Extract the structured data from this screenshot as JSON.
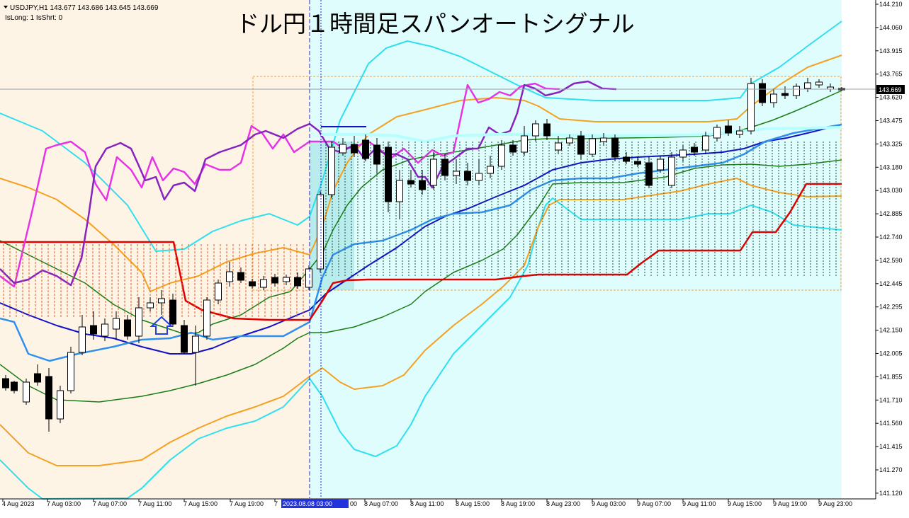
{
  "header": {
    "symbol_line": "USDJPY,H1  143.677 143.686 143.645 143.669",
    "status_line": "IsLong: 1 IsShrt: 0",
    "title": "ドル円１時間足スパンオートシグナル"
  },
  "price_axis": {
    "labels": [
      "144.210",
      "144.060",
      "143.915",
      "143.765",
      "143.620",
      "143.475",
      "143.325",
      "143.180",
      "143.030",
      "142.885",
      "142.740",
      "142.590",
      "142.445",
      "142.295",
      "142.150",
      "142.005",
      "141.855",
      "141.710",
      "141.560",
      "141.415",
      "141.270",
      "141.120"
    ],
    "current_price": "143.669"
  },
  "time_axis": {
    "labels": [
      "4 Aug 2023",
      "7 Aug 03:00",
      "7 Aug 07:00",
      "7 Aug 11:00",
      "7 Aug 15:00",
      "7 Aug 19:00",
      "7",
      "8 Aug 07:00",
      "8 Aug 11:00",
      "8 Aug 15:00",
      "8 Aug 19:00",
      "8 Aug 23:00",
      "9 Aug 03:00",
      "9 Aug 07:00",
      "9 Aug 11:00",
      "9 Aug 15:00",
      "9 Aug 19:00",
      "9 Aug 23:00"
    ],
    "cursor_label": "2023.08.08 03:00",
    "cursor_suffix": "00"
  },
  "colors": {
    "bg_zone_left": "#fdf4e6",
    "bg_zone_right": "#e0fdfd",
    "candle_up": "#ffffff",
    "candle_down": "#000000",
    "bb_outer": "#2ee0ef",
    "bb_mid": "#f5a020",
    "ma_fast": "#1a7e16",
    "ma_mid": "#1111c8",
    "ma_slow": "#3090ee",
    "stop_line": "#e00000",
    "rsi_a": "#e633e6",
    "rsi_b": "#8822c0",
    "cursor": "#2222cc"
  },
  "signal": {
    "direction": "long",
    "icon": "up-arrow-icon"
  }
}
